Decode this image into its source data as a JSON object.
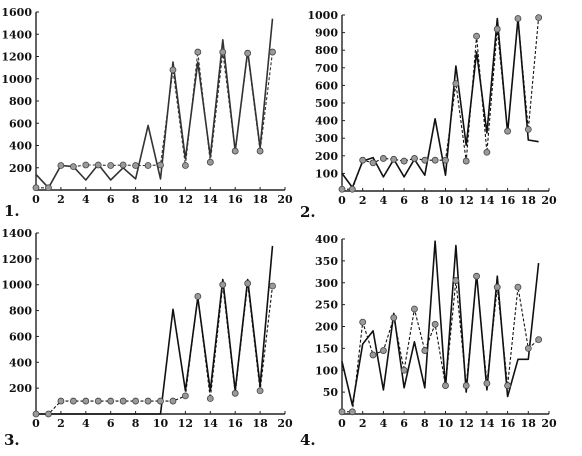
{
  "chart_data": [
    {
      "type": "line",
      "panel_label": "1.",
      "xlim": [
        0,
        20
      ],
      "ylim": [
        0,
        1600
      ],
      "xticks": [
        "0",
        "2",
        "4",
        "6",
        "8",
        "10",
        "12",
        "14",
        "16",
        "18",
        "20"
      ],
      "yticks": [
        "200",
        "400",
        "600",
        "800",
        "1000",
        "1200",
        "1400",
        "1600"
      ],
      "series": [
        {
          "style": "solid",
          "marker": "none",
          "color": "#333333",
          "x": [
            0,
            1,
            2,
            3,
            4,
            5,
            6,
            7,
            8,
            9,
            10,
            11,
            12,
            13,
            14,
            15,
            16,
            17,
            18,
            19
          ],
          "y": [
            140,
            20,
            220,
            210,
            90,
            230,
            90,
            200,
            100,
            580,
            100,
            1150,
            280,
            1150,
            300,
            1350,
            350,
            1250,
            380,
            1540
          ]
        },
        {
          "style": "dashed",
          "marker": "circle",
          "color": "#333333",
          "x": [
            0,
            1,
            2,
            3,
            4,
            5,
            6,
            7,
            8,
            9,
            10,
            11,
            12,
            13,
            14,
            15,
            16,
            17,
            18,
            19
          ],
          "y": [
            20,
            20,
            220,
            210,
            225,
            225,
            220,
            225,
            220,
            220,
            225,
            1080,
            220,
            1240,
            250,
            1240,
            350,
            1230,
            350,
            1240
          ]
        }
      ]
    },
    {
      "type": "line",
      "panel_label": "2.",
      "xlim": [
        0,
        20
      ],
      "ylim": [
        0,
        1000
      ],
      "xticks": [
        "0",
        "2",
        "4",
        "6",
        "8",
        "10",
        "12",
        "14",
        "16",
        "18",
        "20"
      ],
      "yticks": [
        "100",
        "200",
        "300",
        "400",
        "500",
        "600",
        "700",
        "800",
        "900",
        "1000"
      ],
      "series": [
        {
          "style": "solid",
          "marker": "none",
          "color": "#111111",
          "x": [
            0,
            1,
            2,
            3,
            4,
            5,
            6,
            7,
            8,
            9,
            10,
            11,
            12,
            13,
            14,
            15,
            16,
            17,
            18,
            19
          ],
          "y": [
            100,
            20,
            170,
            190,
            80,
            180,
            80,
            180,
            90,
            410,
            90,
            710,
            260,
            790,
            330,
            980,
            330,
            980,
            290,
            280
          ]
        },
        {
          "style": "dashed",
          "marker": "circle",
          "color": "#111111",
          "x": [
            0,
            1,
            2,
            3,
            4,
            5,
            6,
            7,
            8,
            9,
            10,
            11,
            12,
            13,
            14,
            15,
            16,
            17,
            18,
            19
          ],
          "y": [
            10,
            10,
            175,
            160,
            185,
            180,
            170,
            185,
            175,
            175,
            175,
            610,
            170,
            880,
            220,
            920,
            340,
            980,
            350,
            985
          ]
        }
      ]
    },
    {
      "type": "line",
      "panel_label": "3.",
      "xlim": [
        0,
        20
      ],
      "ylim": [
        0,
        1400
      ],
      "xticks": [
        "0",
        "2",
        "4",
        "6",
        "8",
        "10",
        "12",
        "14",
        "16",
        "18",
        "20"
      ],
      "yticks": [
        "200",
        "400",
        "600",
        "800",
        "1000",
        "1200",
        "1400"
      ],
      "series": [
        {
          "style": "solid",
          "marker": "none",
          "color": "#111111",
          "x": [
            0,
            1,
            2,
            3,
            4,
            5,
            6,
            7,
            8,
            9,
            10,
            11,
            12,
            13,
            14,
            15,
            16,
            17,
            18,
            19
          ],
          "y": [
            0,
            0,
            0,
            0,
            0,
            0,
            0,
            0,
            0,
            0,
            0,
            810,
            180,
            900,
            180,
            1040,
            180,
            1040,
            220,
            1300
          ]
        },
        {
          "style": "dashed",
          "marker": "circle",
          "color": "#111111",
          "x": [
            0,
            1,
            2,
            3,
            4,
            5,
            6,
            7,
            8,
            9,
            10,
            11,
            12,
            13,
            14,
            15,
            16,
            17,
            18,
            19
          ],
          "y": [
            0,
            0,
            100,
            100,
            100,
            100,
            100,
            100,
            100,
            100,
            100,
            100,
            140,
            910,
            120,
            1000,
            160,
            1010,
            180,
            990
          ]
        }
      ]
    },
    {
      "type": "line",
      "panel_label": "4.",
      "xlim": [
        0,
        20
      ],
      "ylim": [
        0,
        400
      ],
      "xticks": [
        "0",
        "2",
        "4",
        "6",
        "8",
        "10",
        "12",
        "14",
        "16",
        "18",
        "20"
      ],
      "yticks": [
        "50",
        "100",
        "150",
        "200",
        "250",
        "300",
        "350",
        "400"
      ],
      "series": [
        {
          "style": "solid",
          "marker": "none",
          "color": "#111111",
          "x": [
            0,
            1,
            2,
            3,
            4,
            5,
            6,
            7,
            8,
            9,
            10,
            11,
            12,
            13,
            14,
            15,
            16,
            17,
            18,
            19
          ],
          "y": [
            120,
            20,
            160,
            190,
            55,
            230,
            60,
            165,
            60,
            395,
            60,
            385,
            50,
            320,
            55,
            315,
            40,
            125,
            125,
            345
          ]
        },
        {
          "style": "dashed",
          "marker": "circle",
          "color": "#111111",
          "x": [
            0,
            1,
            2,
            3,
            4,
            5,
            6,
            7,
            8,
            9,
            10,
            11,
            12,
            13,
            14,
            15,
            16,
            17,
            18,
            19
          ],
          "y": [
            5,
            5,
            210,
            135,
            145,
            220,
            100,
            240,
            145,
            205,
            65,
            305,
            65,
            315,
            70,
            290,
            65,
            290,
            150,
            170
          ]
        }
      ]
    }
  ]
}
